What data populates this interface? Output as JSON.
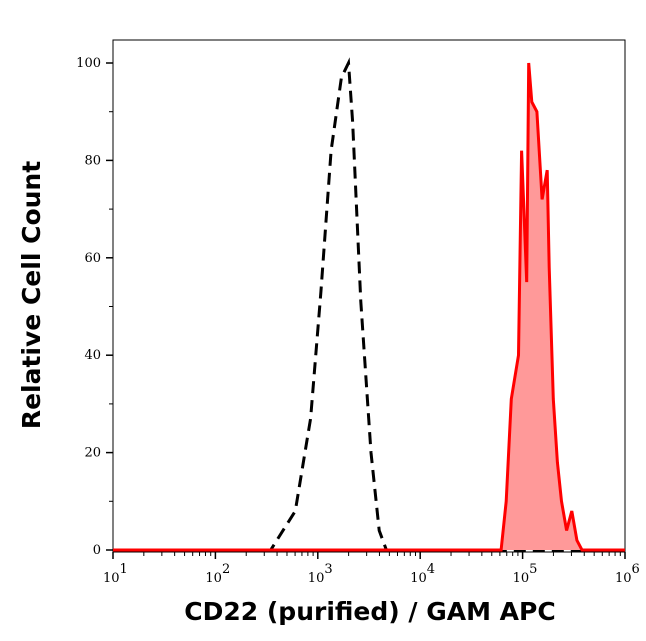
{
  "chart_data": {
    "type": "area",
    "title": "",
    "xlabel": "CD22 (purified) / GAM APC",
    "ylabel": "Relative Cell Count",
    "x_scale": "log",
    "xlim": [
      10,
      1000000
    ],
    "ylim": [
      0,
      105
    ],
    "x_ticks": [
      {
        "base": "10",
        "exp": "1"
      },
      {
        "base": "10",
        "exp": "2"
      },
      {
        "base": "10",
        "exp": "3"
      },
      {
        "base": "10",
        "exp": "4"
      },
      {
        "base": "10",
        "exp": "5"
      },
      {
        "base": "10",
        "exp": "6"
      }
    ],
    "y_ticks": [
      "0",
      "20",
      "40",
      "60",
      "80",
      "100"
    ],
    "grid": false,
    "series": [
      {
        "style": "dashed line",
        "color": "#000000",
        "log10_x": [
          1,
          2.5,
          2.54,
          2.78,
          2.93,
          3.03,
          3.13,
          3.23,
          3.3,
          3.34,
          3.42,
          3.52,
          3.6,
          3.67,
          6
        ],
        "y": [
          0,
          0,
          0,
          8,
          27,
          53,
          82,
          97,
          100,
          88,
          51,
          20,
          4,
          0,
          0
        ]
      },
      {
        "style": "filled line",
        "color": "#ff0000",
        "fill": "#ff9999",
        "log10_x": [
          1,
          4.79,
          4.84,
          4.89,
          4.96,
          4.99,
          5.04,
          5.06,
          5.09,
          5.14,
          5.19,
          5.24,
          5.26,
          5.3,
          5.34,
          5.38,
          5.43,
          5.48,
          5.53,
          5.58,
          6
        ],
        "y": [
          0,
          0,
          10,
          31,
          40,
          82,
          55,
          100,
          92,
          90,
          72,
          78,
          58,
          31,
          18,
          10,
          4,
          8,
          2,
          0,
          0
        ]
      }
    ]
  }
}
